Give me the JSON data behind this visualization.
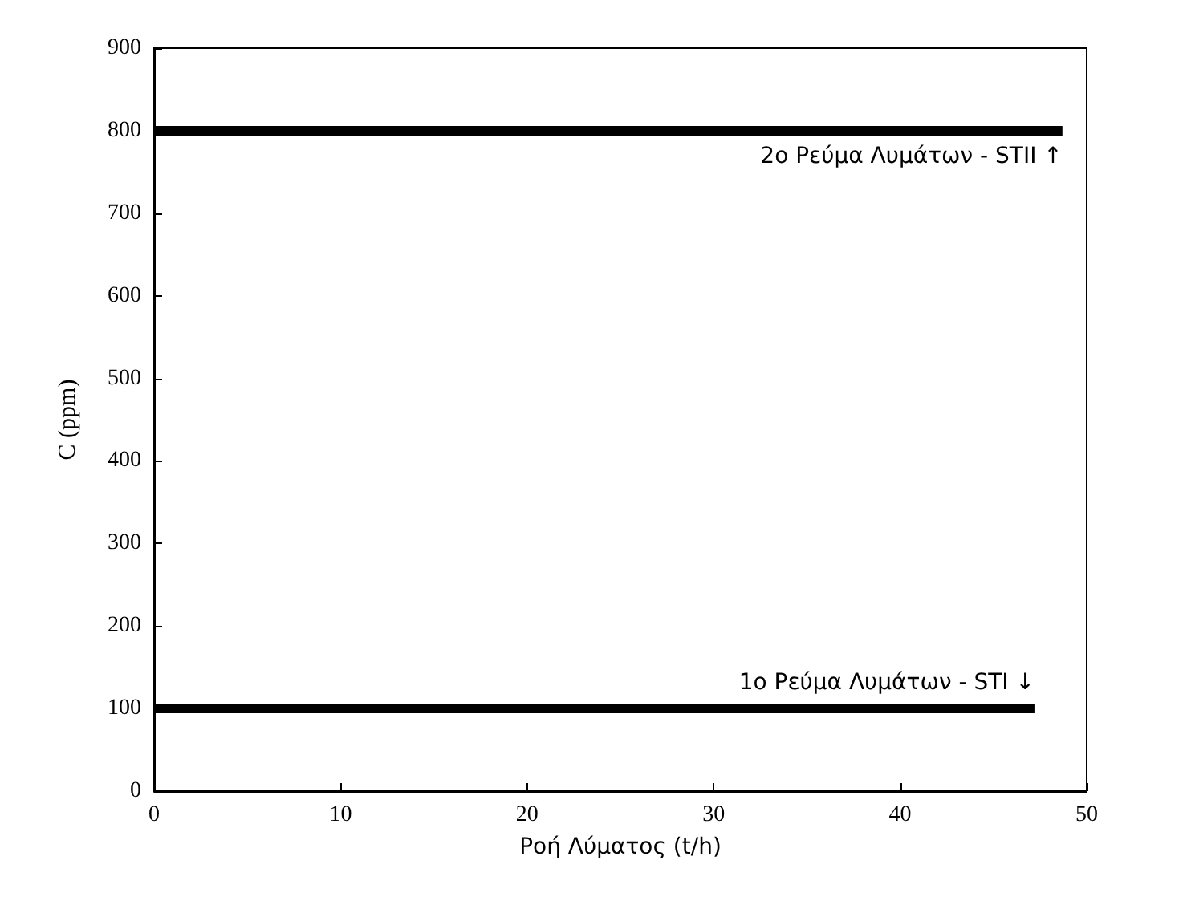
{
  "chart_data": {
    "type": "line",
    "xlabel": "Ροή Λύματος (t/h)",
    "ylabel": "C (ppm)",
    "xlim": [
      0,
      50
    ],
    "xticks": [
      0,
      10,
      20,
      30,
      40,
      50
    ],
    "ylim": [
      0,
      900
    ],
    "yticks": [
      0,
      100,
      200,
      300,
      400,
      500,
      600,
      700,
      800,
      900
    ],
    "grid": false,
    "marker": "none",
    "line_style": "solid",
    "series": [
      {
        "color": "#000000",
        "x": [
          0,
          48.7
        ],
        "values": [
          800,
          800
        ]
      },
      {
        "color": "#000000",
        "x": [
          0,
          47.2
        ],
        "values": [
          100,
          100
        ]
      }
    ],
    "annotations": [
      {
        "text": "2o Ρεύμα Λυμάτων - STII ↑",
        "x": 48.7,
        "y": 800
      },
      {
        "text": "1o Ρεύμα Λυμάτων - STI ↓",
        "x": 47.2,
        "y": 100
      }
    ]
  }
}
